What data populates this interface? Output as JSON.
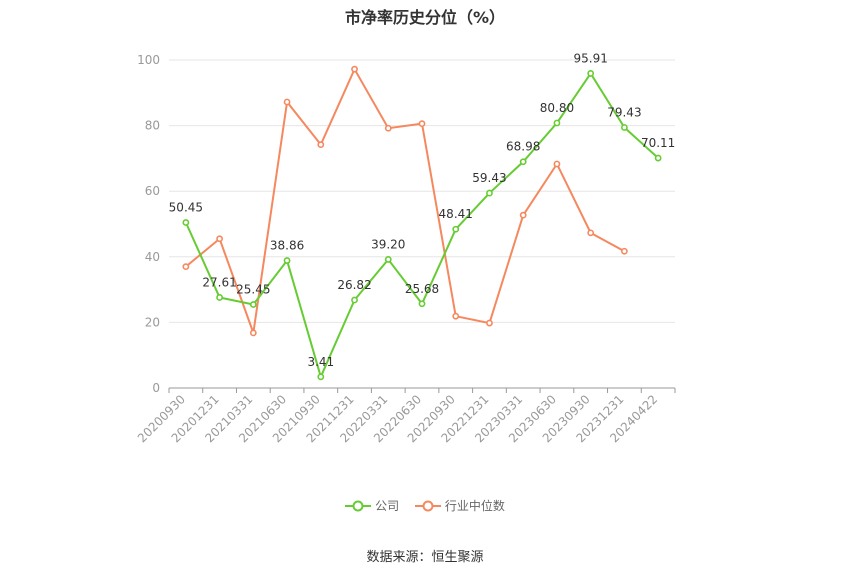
{
  "title": "市净率历史分位（%）",
  "source": "数据来源：恒生聚源",
  "colors": {
    "company": "#66cc33",
    "industry": "#f5885e",
    "grid": "#e6e6e6",
    "axis": "#999999"
  },
  "chart_data": {
    "type": "line",
    "title": "市净率历史分位（%）",
    "ylim": [
      0,
      100
    ],
    "yticks": [
      0,
      20,
      40,
      60,
      80,
      100
    ],
    "grid": true,
    "legend_position": "bottom",
    "categories": [
      "20200930",
      "20201231",
      "20210331",
      "20210630",
      "20210930",
      "20211231",
      "20220331",
      "20220630",
      "20220930",
      "20221231",
      "20230331",
      "20230630",
      "20230930",
      "20231231",
      "20240422"
    ],
    "series": [
      {
        "name": "公司",
        "color": "#66cc33",
        "labels": true,
        "values": [
          50.45,
          27.61,
          25.45,
          38.86,
          3.41,
          26.82,
          39.2,
          25.68,
          48.41,
          59.43,
          68.98,
          80.8,
          95.91,
          79.43,
          70.11
        ]
      },
      {
        "name": "行业中位数",
        "color": "#f5885e",
        "labels": false,
        "values": [
          37.0,
          45.5,
          16.8,
          87.2,
          74.2,
          97.2,
          79.2,
          80.6,
          21.9,
          19.8,
          52.7,
          68.3,
          47.3,
          41.7,
          null
        ]
      }
    ]
  }
}
